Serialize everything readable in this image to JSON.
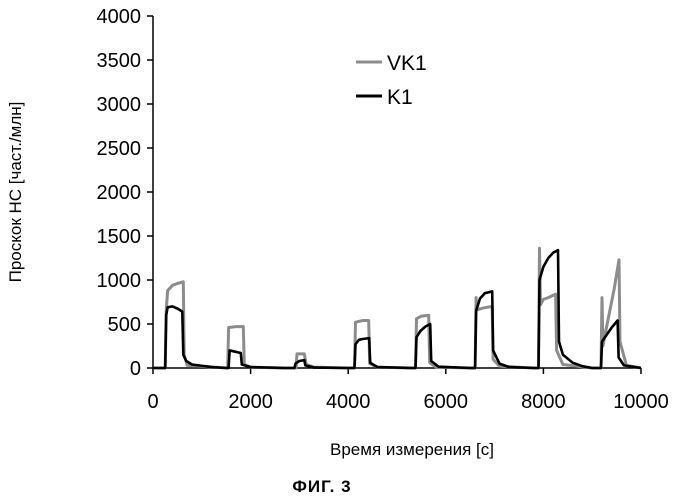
{
  "figure": {
    "caption": "ФИГ. 3"
  },
  "chart_data": {
    "type": "line",
    "xlabel": "Время измерения [с]",
    "ylabel": "Проскок НС [част./млн]",
    "xlim": [
      0,
      10000
    ],
    "ylim": [
      0,
      4000
    ],
    "x_ticks": [
      "0",
      "2000",
      "4000",
      "6000",
      "8000",
      "10000"
    ],
    "y_ticks": [
      "0",
      "500",
      "1000",
      "1500",
      "2000",
      "2500",
      "3000",
      "3500",
      "4000"
    ],
    "grid": false,
    "legend_position": "top-center",
    "series": [
      {
        "name": "VK1",
        "color": "#8c8c8c",
        "points": [
          [
            0,
            0
          ],
          [
            250,
            0
          ],
          [
            270,
            650
          ],
          [
            300,
            880
          ],
          [
            400,
            940
          ],
          [
            500,
            960
          ],
          [
            620,
            980
          ],
          [
            640,
            150
          ],
          [
            700,
            30
          ],
          [
            1400,
            5
          ],
          [
            1530,
            0
          ],
          [
            1550,
            460
          ],
          [
            1700,
            470
          ],
          [
            1850,
            470
          ],
          [
            1870,
            40
          ],
          [
            2000,
            10
          ],
          [
            2700,
            0
          ],
          [
            2930,
            0
          ],
          [
            2950,
            160
          ],
          [
            3100,
            160
          ],
          [
            3140,
            40
          ],
          [
            3300,
            10
          ],
          [
            4000,
            0
          ],
          [
            4130,
            0
          ],
          [
            4150,
            520
          ],
          [
            4300,
            540
          ],
          [
            4420,
            540
          ],
          [
            4440,
            50
          ],
          [
            4600,
            10
          ],
          [
            5300,
            0
          ],
          [
            5380,
            0
          ],
          [
            5400,
            560
          ],
          [
            5500,
            590
          ],
          [
            5650,
            600
          ],
          [
            5670,
            60
          ],
          [
            5800,
            10
          ],
          [
            6500,
            0
          ],
          [
            6600,
            0
          ],
          [
            6620,
            800
          ],
          [
            6640,
            660
          ],
          [
            6750,
            680
          ],
          [
            6950,
            700
          ],
          [
            6970,
            100
          ],
          [
            7100,
            20
          ],
          [
            7800,
            0
          ],
          [
            7900,
            0
          ],
          [
            7920,
            1360
          ],
          [
            7940,
            720
          ],
          [
            8000,
            780
          ],
          [
            8100,
            800
          ],
          [
            8250,
            840
          ],
          [
            8270,
            200
          ],
          [
            8400,
            40
          ],
          [
            9000,
            0
          ],
          [
            9180,
            0
          ],
          [
            9200,
            800
          ],
          [
            9220,
            250
          ],
          [
            9300,
            480
          ],
          [
            9450,
            900
          ],
          [
            9550,
            1230
          ],
          [
            9570,
            300
          ],
          [
            9700,
            30
          ],
          [
            10000,
            0
          ]
        ]
      },
      {
        "name": "K1",
        "color": "#000000",
        "points": [
          [
            0,
            0
          ],
          [
            250,
            0
          ],
          [
            270,
            600
          ],
          [
            300,
            690
          ],
          [
            400,
            700
          ],
          [
            520,
            670
          ],
          [
            600,
            640
          ],
          [
            620,
            150
          ],
          [
            680,
            80
          ],
          [
            800,
            40
          ],
          [
            1200,
            10
          ],
          [
            1500,
            0
          ],
          [
            1550,
            0
          ],
          [
            1570,
            200
          ],
          [
            1650,
            190
          ],
          [
            1800,
            170
          ],
          [
            1820,
            40
          ],
          [
            2000,
            10
          ],
          [
            2700,
            0
          ],
          [
            2900,
            0
          ],
          [
            2920,
            50
          ],
          [
            3000,
            80
          ],
          [
            3100,
            90
          ],
          [
            3120,
            30
          ],
          [
            3300,
            5
          ],
          [
            4000,
            0
          ],
          [
            4130,
            0
          ],
          [
            4150,
            270
          ],
          [
            4220,
            320
          ],
          [
            4300,
            330
          ],
          [
            4430,
            340
          ],
          [
            4450,
            60
          ],
          [
            4600,
            10
          ],
          [
            5300,
            0
          ],
          [
            5380,
            0
          ],
          [
            5400,
            350
          ],
          [
            5480,
            420
          ],
          [
            5580,
            470
          ],
          [
            5680,
            500
          ],
          [
            5700,
            80
          ],
          [
            5850,
            15
          ],
          [
            6500,
            0
          ],
          [
            6600,
            0
          ],
          [
            6620,
            650
          ],
          [
            6700,
            790
          ],
          [
            6800,
            850
          ],
          [
            6950,
            870
          ],
          [
            6970,
            200
          ],
          [
            7100,
            50
          ],
          [
            7300,
            10
          ],
          [
            7800,
            0
          ],
          [
            7900,
            0
          ],
          [
            7920,
            1000
          ],
          [
            8000,
            1150
          ],
          [
            8100,
            1250
          ],
          [
            8200,
            1310
          ],
          [
            8300,
            1340
          ],
          [
            8320,
            300
          ],
          [
            8400,
            150
          ],
          [
            8600,
            60
          ],
          [
            8800,
            20
          ],
          [
            9000,
            0
          ],
          [
            9180,
            0
          ],
          [
            9200,
            300
          ],
          [
            9300,
            380
          ],
          [
            9400,
            460
          ],
          [
            9520,
            540
          ],
          [
            9540,
            120
          ],
          [
            9650,
            30
          ],
          [
            10000,
            0
          ]
        ]
      }
    ]
  }
}
